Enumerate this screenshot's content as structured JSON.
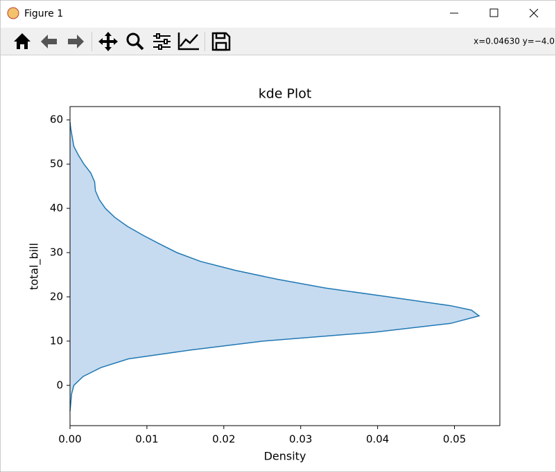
{
  "window": {
    "title": "Figure 1"
  },
  "toolbar": {
    "coordinates": "x=0.04630 y=−4.0"
  },
  "chart_data": {
    "type": "kde",
    "orientation": "horizontal",
    "title": "kde Plot",
    "x_label": "Density",
    "y_label": "total_bill",
    "color": "#1f77b4",
    "fill_color": "#c6dbef",
    "y": [
      -5.8,
      -4,
      -2,
      0,
      2,
      4,
      6,
      8,
      10,
      12,
      14,
      15.7,
      17,
      18,
      20,
      22,
      24,
      26,
      28,
      30,
      32,
      34,
      36,
      38,
      40,
      42,
      44,
      46,
      48,
      50,
      52,
      54,
      56,
      58,
      59.5
    ],
    "values": [
      0,
      0.0001,
      0.0002,
      0.0005,
      0.0017,
      0.004,
      0.0076,
      0.0157,
      0.0251,
      0.0395,
      0.0495,
      0.0532,
      0.0522,
      0.0495,
      0.0414,
      0.0332,
      0.0269,
      0.0215,
      0.017,
      0.0139,
      0.0116,
      0.0094,
      0.0074,
      0.0058,
      0.0046,
      0.0038,
      0.0033,
      0.0032,
      0.0027,
      0.0018,
      0.0011,
      0.0005,
      0.0003,
      0.0001,
      0
    ],
    "xlim": [
      0,
      0.0559
    ],
    "ylim": [
      -9.1,
      63
    ],
    "xticks": [
      {
        "value": 0,
        "label": "0.00"
      },
      {
        "value": 0.01,
        "label": "0.01"
      },
      {
        "value": 0.02,
        "label": "0.02"
      },
      {
        "value": 0.03,
        "label": "0.03"
      },
      {
        "value": 0.04,
        "label": "0.04"
      },
      {
        "value": 0.05,
        "label": "0.05"
      }
    ],
    "yticks": [
      0,
      10,
      20,
      30,
      40,
      50,
      60
    ]
  }
}
